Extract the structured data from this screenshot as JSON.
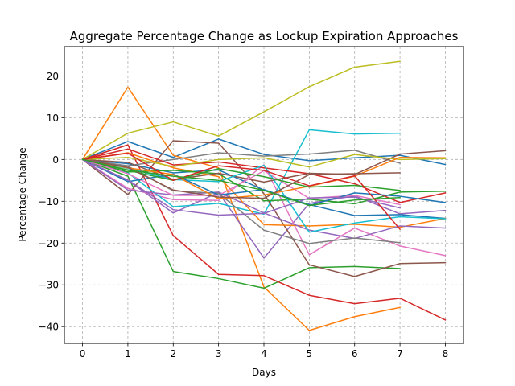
{
  "chart_data": {
    "type": "line",
    "title": "Aggregate Percentage Change as Lockup Expiration Approaches",
    "xlabel": "Days",
    "ylabel": "Percentage Change",
    "xlim": [
      -0.4,
      8.4
    ],
    "ylim": [
      -44,
      27
    ],
    "x_ticks": [
      0,
      1,
      2,
      3,
      4,
      5,
      6,
      7,
      8
    ],
    "y_ticks": [
      -40,
      -30,
      -20,
      -10,
      0,
      10,
      20
    ],
    "grid": true,
    "grid_style": "dashed",
    "legend": "none",
    "series": [
      {
        "color": "#1f77b4",
        "x": [
          0,
          1,
          2,
          3,
          4,
          5,
          6,
          7,
          8
        ],
        "values": [
          0,
          4.3,
          0.5,
          4.9,
          1.2,
          -0.3,
          0.4,
          1.0,
          -1.2
        ]
      },
      {
        "color": "#ff7f0e",
        "x": [
          0,
          1,
          2,
          3,
          4,
          5,
          6,
          7
        ],
        "values": [
          0,
          17.3,
          1.0,
          -2.0,
          -30.5,
          -40.9,
          -37.6,
          -35.4
        ]
      },
      {
        "color": "#2ca02c",
        "x": [
          0,
          1,
          2,
          3,
          4,
          5,
          6,
          7
        ],
        "values": [
          0,
          -4.0,
          -26.8,
          -28.5,
          -30.8,
          -25.9,
          -25.6,
          -26.1
        ]
      },
      {
        "color": "#d62728",
        "x": [
          0,
          1,
          2,
          3,
          4,
          5,
          6,
          7,
          8
        ],
        "values": [
          0,
          3.5,
          -18.2,
          -27.5,
          -27.8,
          -32.5,
          -34.5,
          -33.2,
          -38.4
        ]
      },
      {
        "color": "#9467bd",
        "x": [
          0,
          1,
          2,
          3,
          4,
          5,
          6,
          7,
          8
        ],
        "values": [
          0,
          -5.0,
          -12.8,
          -7.9,
          -23.6,
          -10.5,
          -8.7,
          -13.0,
          -12.2
        ]
      },
      {
        "color": "#8c564b",
        "x": [
          0,
          1,
          2,
          3,
          4,
          5,
          6,
          7,
          8
        ],
        "values": [
          0,
          -8.4,
          4.5,
          3.9,
          -8.2,
          -25.2,
          -28.0,
          -24.9,
          -24.7
        ]
      },
      {
        "color": "#e377c2",
        "x": [
          0,
          1,
          2,
          3,
          4,
          5,
          6,
          7,
          8
        ],
        "values": [
          0,
          -6.9,
          -9.6,
          -9.8,
          -1.3,
          -22.8,
          -16.4,
          -20.7,
          -23.0
        ]
      },
      {
        "color": "#7f7f7f",
        "x": [
          0,
          1,
          2,
          3,
          4,
          5,
          6,
          7
        ],
        "values": [
          0,
          -1.5,
          0.0,
          1.6,
          0.8,
          1.3,
          2.2,
          -0.9
        ]
      },
      {
        "color": "#bcbd22",
        "x": [
          0,
          1,
          2,
          3,
          4,
          5,
          6,
          7
        ],
        "values": [
          0,
          6.3,
          9.0,
          5.6,
          11.4,
          17.4,
          22.1,
          23.5
        ]
      },
      {
        "color": "#17becf",
        "x": [
          0,
          1,
          2,
          3,
          4,
          5,
          6,
          7
        ],
        "values": [
          0,
          -3.2,
          -11.3,
          -10.5,
          -13.1,
          7.1,
          6.1,
          6.3
        ]
      },
      {
        "color": "#1f77b4",
        "x": [
          0,
          1,
          2,
          3,
          4,
          5,
          6,
          7,
          8
        ],
        "values": [
          0,
          -1.0,
          -3.2,
          -2.5,
          -7.3,
          -10.8,
          -13.4,
          -13.2,
          -14.1
        ]
      },
      {
        "color": "#ff7f0e",
        "x": [
          0,
          1,
          2,
          3,
          4,
          5,
          6,
          7,
          8
        ],
        "values": [
          0,
          1.6,
          -2.0,
          -4.1,
          -15.6,
          -15.9,
          -15.5,
          -16.2,
          -14.1
        ]
      },
      {
        "color": "#2ca02c",
        "x": [
          0,
          1,
          2,
          3,
          4,
          5,
          6,
          7,
          8
        ],
        "values": [
          0,
          -3.0,
          -2.6,
          -3.4,
          -9.9,
          -9.5,
          -10.6,
          -7.8,
          -7.6
        ]
      },
      {
        "color": "#d62728",
        "x": [
          0,
          1,
          2,
          3,
          4,
          5,
          6,
          7,
          8
        ],
        "values": [
          0,
          2.5,
          -1.3,
          -0.6,
          -2.0,
          -3.4,
          -5.8,
          -10.3,
          -8.0
        ]
      },
      {
        "color": "#9467bd",
        "x": [
          0,
          1,
          2,
          3,
          4,
          5,
          6,
          7,
          8
        ],
        "values": [
          0,
          -7.3,
          -8.5,
          -7.8,
          -12.8,
          -16.9,
          -18.9,
          -15.9,
          -16.4
        ]
      },
      {
        "color": "#8c564b",
        "x": [
          0,
          1,
          2,
          3,
          4,
          5,
          6,
          7,
          8
        ],
        "values": [
          0,
          -0.7,
          -4.8,
          -3.3,
          -5.4,
          -3.3,
          -3.6,
          1.3,
          2.1
        ]
      },
      {
        "color": "#e377c2",
        "x": [
          0,
          1,
          2,
          3,
          4,
          5,
          6,
          7
        ],
        "values": [
          0,
          -3.4,
          -8.6,
          -8.6,
          -2.7,
          -9.3,
          -8.6,
          -10.8
        ]
      },
      {
        "color": "#7f7f7f",
        "x": [
          0,
          1,
          2,
          3,
          4,
          5,
          6,
          7
        ],
        "values": [
          0,
          -1.6,
          -7.5,
          -8.1,
          -16.9,
          -20.1,
          -18.8,
          -19.9
        ]
      },
      {
        "color": "#bcbd22",
        "x": [
          0,
          1,
          2,
          3,
          4,
          5,
          6,
          7,
          8
        ],
        "values": [
          0,
          0.5,
          -1.7,
          0.0,
          0.4,
          -1.8,
          1.2,
          0.0,
          0.2
        ]
      },
      {
        "color": "#17becf",
        "x": [
          0,
          1,
          2,
          3,
          4,
          5,
          6,
          7,
          8
        ],
        "values": [
          0,
          -2.1,
          -4.8,
          -5.3,
          -1.4,
          -17.4,
          -15.2,
          -13.7,
          -14.2
        ]
      },
      {
        "color": "#1f77b4",
        "x": [
          0,
          1,
          2,
          3,
          4,
          5,
          6,
          7,
          8
        ],
        "values": [
          0,
          -5.3,
          -3.5,
          -8.5,
          -7.2,
          -11.0,
          -8.0,
          -8.8,
          -10.3
        ]
      },
      {
        "color": "#ff7f0e",
        "x": [
          0,
          1,
          2,
          3,
          4,
          5,
          6,
          7,
          8
        ],
        "values": [
          0,
          -2.0,
          -3.6,
          -9.4,
          -8.5,
          -6.4,
          -4.0,
          0.5,
          0.4
        ]
      },
      {
        "color": "#2ca02c",
        "x": [
          0,
          1,
          2,
          3,
          4,
          5,
          6,
          7
        ],
        "values": [
          0,
          -2.6,
          -5.0,
          -2.2,
          -4.1,
          -6.6,
          -6.2,
          -7.4
        ]
      },
      {
        "color": "#d62728",
        "x": [
          0,
          1,
          2,
          3,
          4,
          5,
          6,
          7
        ],
        "values": [
          0,
          1.5,
          -5.0,
          -1.5,
          -2.6,
          -6.3,
          -3.9,
          -16.7
        ]
      },
      {
        "color": "#9467bd",
        "x": [
          0,
          1,
          2,
          3,
          4,
          5,
          6,
          7
        ],
        "values": [
          0,
          -4.9,
          -12.0,
          -13.3,
          -12.9,
          -9.2,
          -9.0,
          -11.6
        ]
      },
      {
        "color": "#8c564b",
        "x": [
          0,
          1,
          2,
          3,
          4,
          5,
          6,
          7
        ],
        "values": [
          0,
          -1.9,
          -7.3,
          -9.0,
          -9.3,
          -3.6,
          -3.4,
          -3.2
        ]
      },
      {
        "color": "#2ca02c",
        "x": [
          0,
          1,
          2,
          3,
          4,
          5,
          6,
          7
        ],
        "values": [
          0,
          -2.5,
          -4.0,
          -5.0,
          -7.4,
          -11.0,
          -9.7,
          -9.1
        ]
      }
    ]
  }
}
